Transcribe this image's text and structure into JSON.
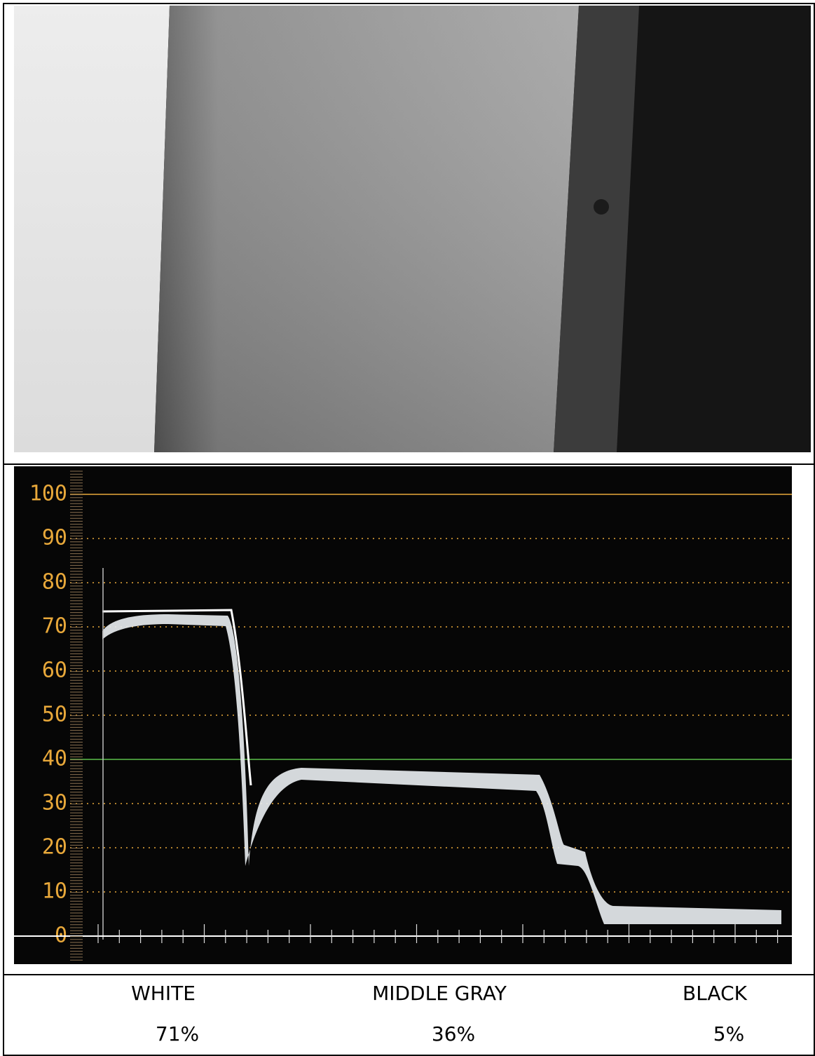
{
  "scope": {
    "yticks": [
      0,
      10,
      20,
      30,
      40,
      50,
      60,
      70,
      80,
      90,
      100
    ]
  },
  "labels": {
    "names": [
      "WHITE",
      "MIDDLE GRAY",
      "BLACK"
    ],
    "values": [
      "71%",
      "36%",
      "5%"
    ]
  }
}
